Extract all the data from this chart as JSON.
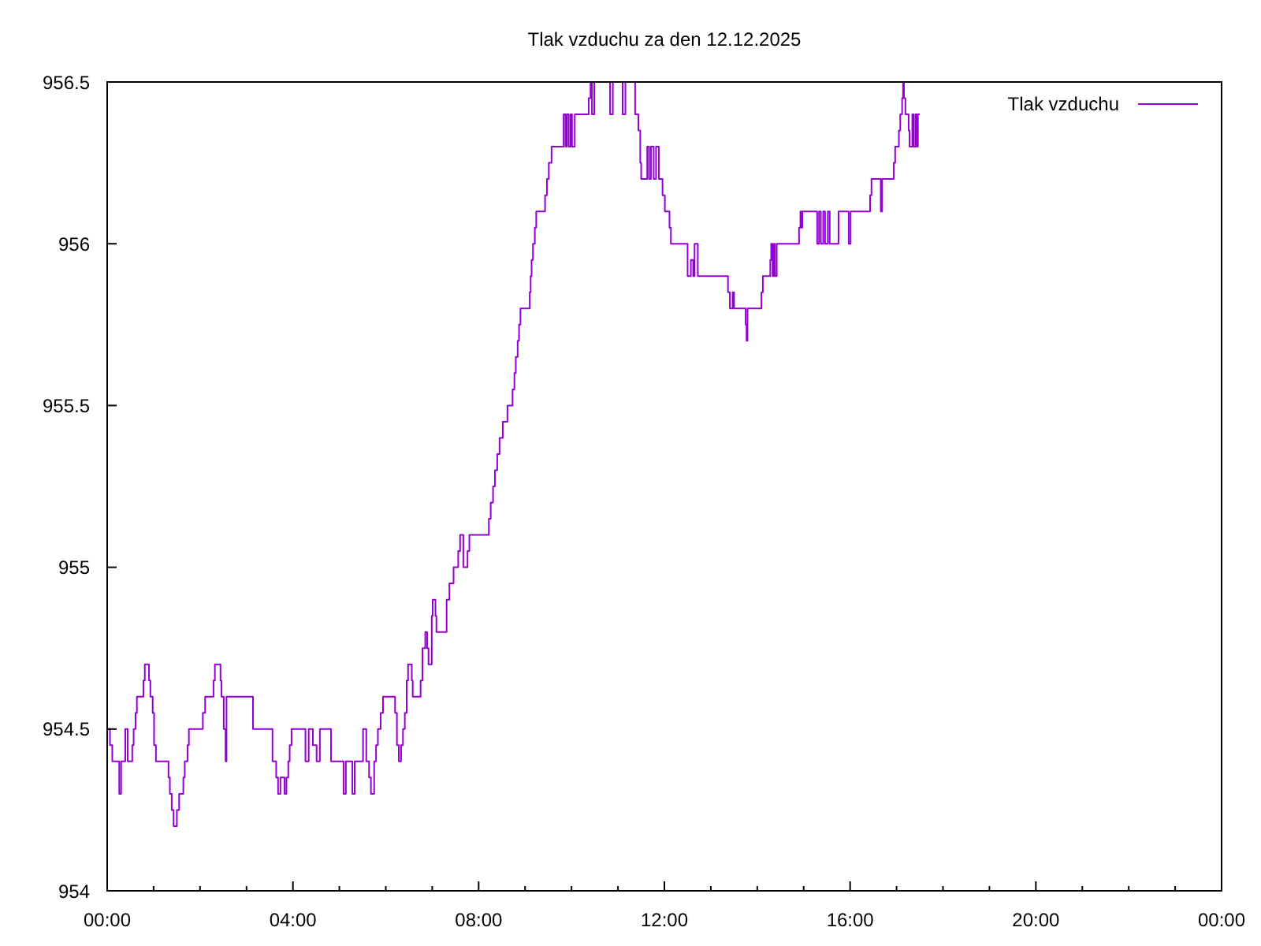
{
  "chart_data": {
    "type": "step",
    "title": "Tlak vzduchu za den 12.12.2025",
    "x": [
      0,
      0.06,
      0.11,
      0.26,
      0.3,
      0.39,
      0.44,
      0.54,
      0.57,
      0.61,
      0.64,
      0.78,
      0.81,
      0.9,
      0.93,
      0.98,
      1.01,
      1.05,
      1.32,
      1.35,
      1.39,
      1.43,
      1.5,
      1.55,
      1.64,
      1.67,
      1.73,
      1.76,
      2.06,
      2.11,
      2.29,
      2.32,
      2.44,
      2.46,
      2.51,
      2.55,
      2.57,
      3.14,
      3.56,
      3.64,
      3.68,
      3.73,
      3.82,
      3.86,
      3.9,
      3.93,
      3.97,
      4.27,
      4.34,
      4.43,
      4.51,
      4.58,
      4.82,
      5.09,
      5.14,
      5.28,
      5.33,
      5.51,
      5.58,
      5.64,
      5.68,
      5.75,
      5.79,
      5.83,
      5.89,
      5.94,
      6.2,
      6.24,
      6.28,
      6.33,
      6.37,
      6.41,
      6.45,
      6.48,
      6.56,
      6.58,
      6.75,
      6.79,
      6.85,
      6.89,
      6.92,
      6.99,
      7.01,
      7.07,
      7.09,
      7.31,
      7.37,
      7.46,
      7.56,
      7.6,
      7.67,
      7.76,
      7.8,
      8.22,
      8.26,
      8.31,
      8.35,
      8.4,
      8.45,
      8.52,
      8.62,
      8.73,
      8.77,
      8.8,
      8.84,
      8.87,
      8.9,
      9.1,
      9.12,
      9.14,
      9.17,
      9.21,
      9.24,
      9.43,
      9.47,
      9.51,
      9.57,
      9.83,
      9.87,
      9.9,
      9.94,
      9.98,
      10.01,
      10.07,
      10.37,
      10.41,
      10.44,
      10.49,
      10.83,
      10.89,
      11.1,
      11.16,
      11.37,
      11.44,
      11.48,
      11.5,
      11.63,
      11.67,
      11.71,
      11.77,
      11.82,
      11.88,
      11.96,
      12.01,
      12.11,
      12.14,
      12.5,
      12.57,
      12.62,
      12.65,
      12.72,
      13.37,
      13.41,
      13.47,
      13.5,
      13.75,
      13.77,
      13.79,
      14.09,
      14.12,
      14.28,
      14.3,
      14.33,
      14.36,
      14.38,
      14.42,
      14.9,
      14.93,
      14.95,
      14.97,
      15.29,
      15.33,
      15.37,
      15.42,
      15.46,
      15.52,
      15.56,
      15.75,
      15.97,
      16.01,
      16.43,
      16.46,
      16.66,
      16.69,
      16.94,
      16.97,
      17.05,
      17.08,
      17.12,
      17.14,
      17.16,
      17.19,
      17.26,
      17.28,
      17.34,
      17.37,
      17.41,
      17.44,
      17.46,
      17.5
    ],
    "series": [
      {
        "name": "Tlak vzduchu",
        "color": "#9400d3",
        "values": [
          954.5,
          954.45,
          954.4,
          954.3,
          954.4,
          954.5,
          954.4,
          954.45,
          954.5,
          954.55,
          954.6,
          954.65,
          954.7,
          954.65,
          954.6,
          954.55,
          954.45,
          954.4,
          954.35,
          954.3,
          954.25,
          954.2,
          954.25,
          954.3,
          954.35,
          954.4,
          954.45,
          954.5,
          954.55,
          954.6,
          954.65,
          954.7,
          954.65,
          954.6,
          954.5,
          954.4,
          954.6,
          954.5,
          954.4,
          954.35,
          954.3,
          954.35,
          954.3,
          954.35,
          954.4,
          954.45,
          954.5,
          954.4,
          954.5,
          954.45,
          954.4,
          954.5,
          954.4,
          954.3,
          954.4,
          954.3,
          954.4,
          954.5,
          954.4,
          954.35,
          954.3,
          954.4,
          954.45,
          954.5,
          954.55,
          954.6,
          954.55,
          954.45,
          954.4,
          954.45,
          954.5,
          954.55,
          954.65,
          954.7,
          954.65,
          954.6,
          954.65,
          954.75,
          954.8,
          954.75,
          954.7,
          954.85,
          954.9,
          954.85,
          954.8,
          954.9,
          954.95,
          955,
          955.05,
          955.1,
          955,
          955.05,
          955.1,
          955.15,
          955.2,
          955.25,
          955.3,
          955.35,
          955.4,
          955.45,
          955.5,
          955.55,
          955.6,
          955.65,
          955.7,
          955.75,
          955.8,
          955.85,
          955.9,
          955.95,
          956,
          956.05,
          956.1,
          956.15,
          956.2,
          956.25,
          956.3,
          956.4,
          956.3,
          956.4,
          956.3,
          956.4,
          956.3,
          956.4,
          956.45,
          956.5,
          956.4,
          956.5,
          956.4,
          956.5,
          956.4,
          956.5,
          956.4,
          956.35,
          956.25,
          956.2,
          956.3,
          956.2,
          956.3,
          956.2,
          956.3,
          956.2,
          956.15,
          956.1,
          956.05,
          956,
          955.9,
          955.95,
          955.9,
          956,
          955.9,
          955.85,
          955.8,
          955.85,
          955.8,
          955.75,
          955.7,
          955.8,
          955.85,
          955.9,
          955.95,
          956,
          955.9,
          956,
          955.9,
          956,
          956.05,
          956.1,
          956.05,
          956.1,
          956,
          956.1,
          956,
          956.1,
          956,
          956.1,
          956,
          956.1,
          956,
          956.1,
          956.15,
          956.2,
          956.1,
          956.2,
          956.25,
          956.3,
          956.35,
          956.4,
          956.45,
          956.5,
          956.45,
          956.4,
          956.35,
          956.3,
          956.4,
          956.3,
          956.4,
          956.3,
          956.4,
          956.4
        ]
      }
    ],
    "xlim": [
      0,
      24
    ],
    "xticks": [
      {
        "value": 0,
        "label": "00:00"
      },
      {
        "value": 1,
        "label": null
      },
      {
        "value": 2,
        "label": null
      },
      {
        "value": 3,
        "label": null
      },
      {
        "value": 4,
        "label": "04:00"
      },
      {
        "value": 5,
        "label": null
      },
      {
        "value": 6,
        "label": null
      },
      {
        "value": 7,
        "label": null
      },
      {
        "value": 8,
        "label": "08:00"
      },
      {
        "value": 9,
        "label": null
      },
      {
        "value": 10,
        "label": null
      },
      {
        "value": 11,
        "label": null
      },
      {
        "value": 12,
        "label": "12:00"
      },
      {
        "value": 13,
        "label": null
      },
      {
        "value": 14,
        "label": null
      },
      {
        "value": 15,
        "label": null
      },
      {
        "value": 16,
        "label": "16:00"
      },
      {
        "value": 17,
        "label": null
      },
      {
        "value": 18,
        "label": null
      },
      {
        "value": 19,
        "label": null
      },
      {
        "value": 20,
        "label": "20:00"
      },
      {
        "value": 21,
        "label": null
      },
      {
        "value": 22,
        "label": null
      },
      {
        "value": 23,
        "label": null
      },
      {
        "value": 24,
        "label": "00:00"
      }
    ],
    "ylim": [
      954,
      956.5
    ],
    "yticks": [
      954,
      954.5,
      955,
      955.5,
      956,
      956.5
    ],
    "legend": "top right"
  }
}
